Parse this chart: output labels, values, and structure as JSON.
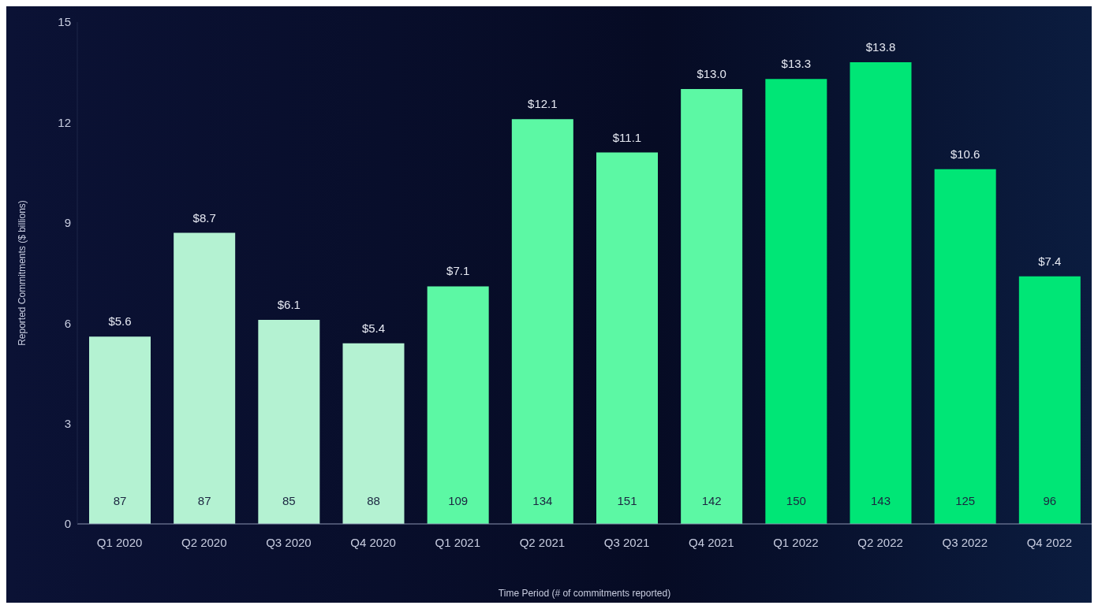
{
  "chart_data": {
    "type": "bar",
    "xlabel": "Time Period (# of commitments reported)",
    "ylabel": "Reported Commitments ($ billions)",
    "categories": [
      "Q1 2020",
      "Q2 2020",
      "Q3 2020",
      "Q4 2020",
      "Q1 2021",
      "Q2 2021",
      "Q3 2021",
      "Q4 2021",
      "Q1 2022",
      "Q2 2022",
      "Q3 2022",
      "Q4 2022"
    ],
    "values": [
      5.6,
      8.7,
      6.1,
      5.4,
      7.1,
      12.1,
      11.1,
      13.0,
      13.3,
      13.8,
      10.6,
      7.4
    ],
    "value_labels": [
      "$5.6",
      "$8.7",
      "$6.1",
      "$5.4",
      "$7.1",
      "$12.1",
      "$11.1",
      "$13.0",
      "$13.3",
      "$13.8",
      "$10.6",
      "$7.4"
    ],
    "colors": [
      "#b4f2d2",
      "#b4f2d2",
      "#b4f2d2",
      "#b4f2d2",
      "#5cf8a4",
      "#5cf8a4",
      "#5cf8a4",
      "#5cf8a4",
      "#00e676",
      "#00e676",
      "#00e676",
      "#00e676"
    ],
    "ylim": [
      0,
      15
    ],
    "yticks": [
      0,
      3,
      6,
      9,
      12,
      15
    ],
    "grid": false,
    "legend": false,
    "annotations": [
      {
        "text": "87",
        "x": "Q1 2020",
        "y": 0
      },
      {
        "text": "87",
        "x": "Q2 2020",
        "y": 0
      },
      {
        "text": "85",
        "x": "Q3 2020",
        "y": 0
      },
      {
        "text": "88",
        "x": "Q4 2020",
        "y": 0
      },
      {
        "text": "109",
        "x": "Q1 2021",
        "y": 0
      },
      {
        "text": "134",
        "x": "Q2 2021",
        "y": 0
      },
      {
        "text": "151",
        "x": "Q3 2021",
        "y": 0
      },
      {
        "text": "142",
        "x": "Q4 2021",
        "y": 0
      },
      {
        "text": "150",
        "x": "Q1 2022",
        "y": 0
      },
      {
        "text": "143",
        "x": "Q2 2022",
        "y": 0
      },
      {
        "text": "125",
        "x": "Q3 2022",
        "y": 0
      },
      {
        "text": "96",
        "x": "Q4 2022",
        "y": 0
      }
    ]
  }
}
